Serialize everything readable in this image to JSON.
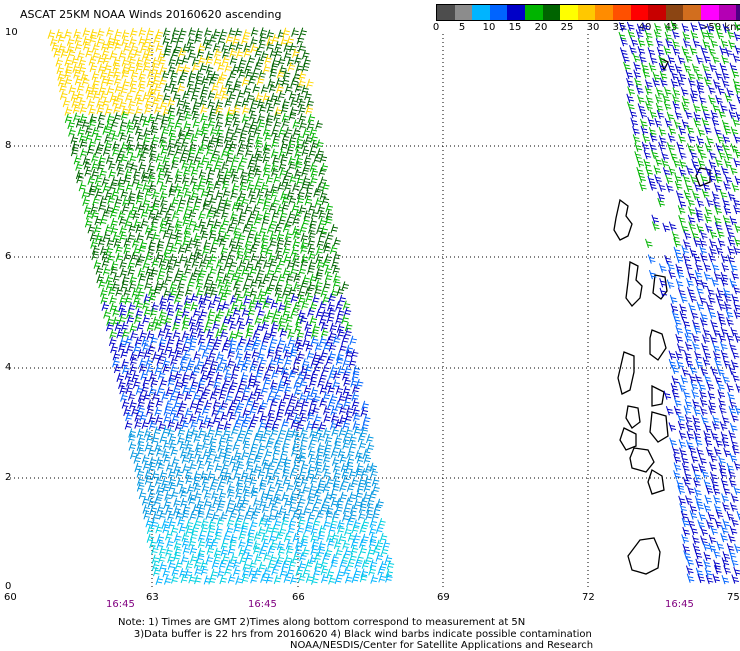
{
  "title": "ASCAT 25KM NOAA Winds 20160620 ascending",
  "legend": {
    "colors": [
      "#4d4d4d",
      "#8c8c8c",
      "#00b4ff",
      "#0064ff",
      "#0000c8",
      "#00b400",
      "#006400",
      "#ffff00",
      "#ffc800",
      "#ff8c00",
      "#ff5000",
      "#ff0000",
      "#c80000",
      "#8b4513",
      "#d26e1e",
      "#ff00ff",
      "#b400b4",
      "#4b0082"
    ],
    "labels": [
      "0",
      "5",
      "10",
      "15",
      "20",
      "25",
      "30",
      "35",
      "40",
      "45"
    ],
    "last_label": ">50 knots"
  },
  "axes": {
    "y_ticks": [
      "10",
      "8",
      "6",
      "4",
      "2",
      "0"
    ],
    "x_ticks": [
      "60",
      "63",
      "66",
      "69",
      "72",
      "75"
    ]
  },
  "times": [
    "16:45",
    "16:45",
    "16:45"
  ],
  "note_line1": "Note: 1) Times are GMT 2)Times along bottom correspond to measurement at 5N",
  "note_line2": "     3)Data buffer is 22 hrs from 20160620 4) Black wind barbs indicate possible contamination",
  "credit": "NOAA/NESDIS/Center for Satellite Applications and Research"
}
